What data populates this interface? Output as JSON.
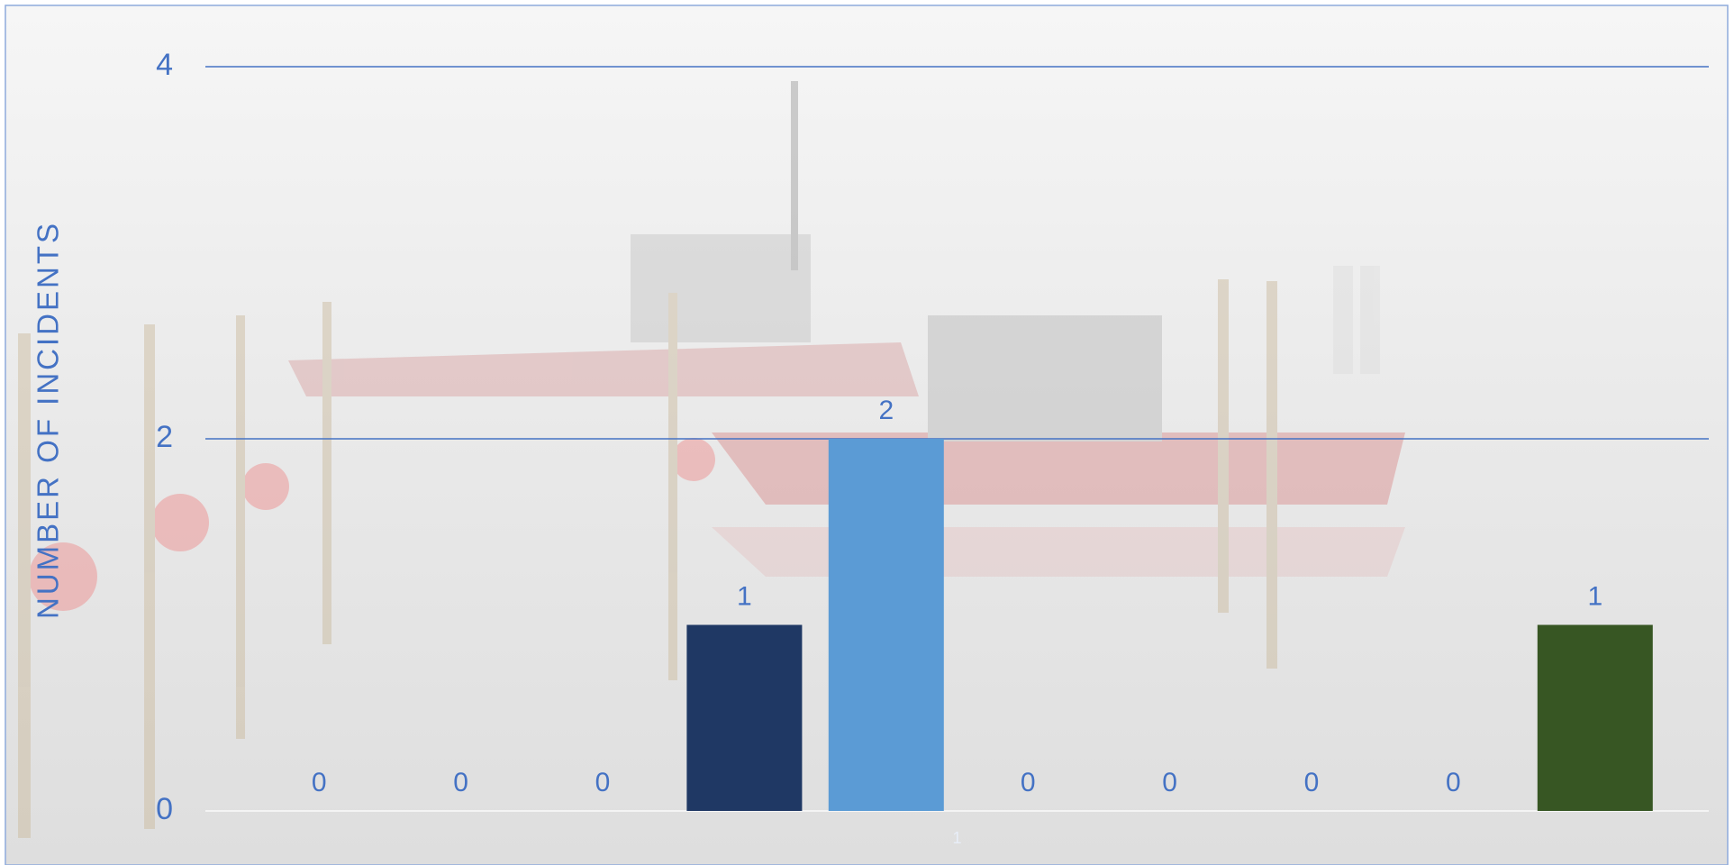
{
  "chart_data": {
    "type": "bar",
    "y_label": "NUMBER OF INCIDENTS",
    "categories": [
      "1"
    ],
    "series": [
      {
        "values": [
          0
        ]
      },
      {
        "values": [
          0
        ]
      },
      {
        "values": [
          0
        ]
      },
      {
        "color": "#1f3864",
        "values": [
          1
        ]
      },
      {
        "color": "#5b9bd5",
        "values": [
          2
        ]
      },
      {
        "values": [
          0
        ]
      },
      {
        "values": [
          0
        ]
      },
      {
        "values": [
          0
        ]
      },
      {
        "values": [
          0
        ]
      },
      {
        "color": "#375623",
        "values": [
          1
        ]
      }
    ],
    "ylim": [
      0,
      4
    ],
    "yticks": [
      0,
      2,
      4
    ],
    "grid": true
  }
}
